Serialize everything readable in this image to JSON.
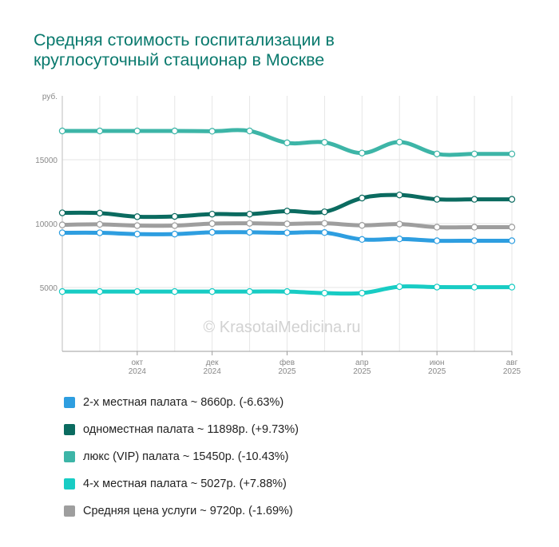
{
  "page": {
    "title_line1": "Средняя стоимость госпитализации в",
    "title_line2": "круглосуточный стационар в Москве",
    "watermark": "© KrasotaiMedicina.ru"
  },
  "chart_data": {
    "type": "line",
    "ylabel": "руб.",
    "ylim": [
      0,
      20000
    ],
    "yticks": [
      5000,
      10000,
      15000
    ],
    "grid": true,
    "legend_position": "bottom",
    "x": [
      "2024-08",
      "2024-09",
      "2024-10",
      "2024-11",
      "2024-12",
      "2025-01",
      "2025-02",
      "2025-03",
      "2025-04",
      "2025-05",
      "2025-06",
      "2025-07",
      "2025-08"
    ],
    "xticks": [
      {
        "month": "окт",
        "year": "2024"
      },
      {
        "month": "дек",
        "year": "2024"
      },
      {
        "month": "фев",
        "year": "2025"
      },
      {
        "month": "апр",
        "year": "2025"
      },
      {
        "month": "июн",
        "year": "2025"
      },
      {
        "month": "авг",
        "year": "2025"
      }
    ],
    "series": [
      {
        "name": "2-х местная палата ~ 8660р. (-6.63%)",
        "color": "#2e9ee0",
        "values": [
          9280,
          9280,
          9180,
          9180,
          9320,
          9320,
          9280,
          9300,
          8760,
          8800,
          8660,
          8660,
          8660
        ]
      },
      {
        "name": "одноместная палата ~ 11898р. (+9.73%)",
        "color": "#0b6b60",
        "values": [
          10840,
          10820,
          10540,
          10560,
          10740,
          10740,
          10980,
          10920,
          12000,
          12240,
          11900,
          11900,
          11898
        ]
      },
      {
        "name": "люкс (VIP) палата ~ 15450р. (-10.43%)",
        "color": "#3db5a7",
        "values": [
          17250,
          17250,
          17250,
          17250,
          17230,
          17250,
          16320,
          16360,
          15520,
          16380,
          15450,
          15450,
          15450
        ]
      },
      {
        "name": "4-х местная палата ~ 5027р. (+7.88%)",
        "color": "#18ccc4",
        "values": [
          4680,
          4680,
          4680,
          4680,
          4680,
          4680,
          4680,
          4560,
          4560,
          5060,
          5030,
          5027,
          5027
        ]
      },
      {
        "name": "Средняя цена услуги ~ 9720р. (-1.69%)",
        "color": "#9e9e9e",
        "values": [
          9900,
          9940,
          9840,
          9840,
          10000,
          10020,
          9980,
          10020,
          9860,
          9960,
          9720,
          9720,
          9720
        ]
      }
    ]
  }
}
